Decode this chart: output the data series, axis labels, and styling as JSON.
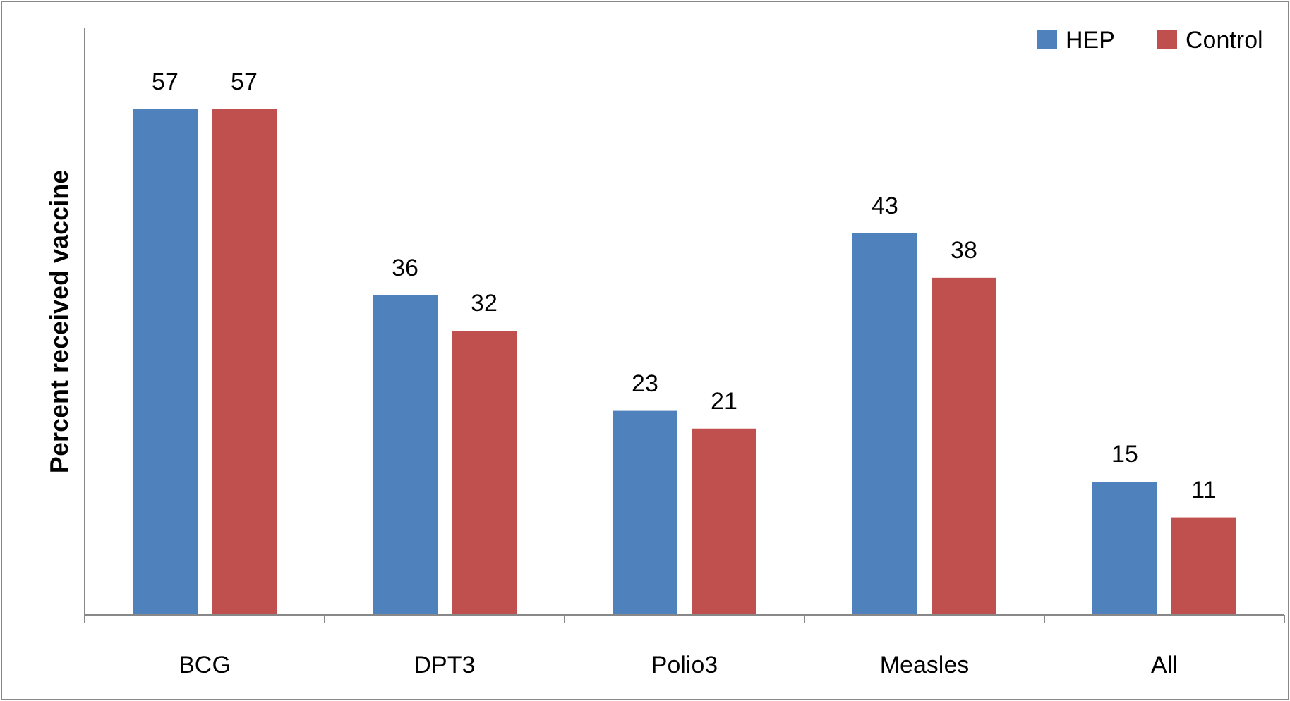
{
  "chart_data": {
    "type": "bar",
    "ylabel": "Percent received vaccine",
    "categories": [
      "BCG",
      "DPT3",
      "Polio3",
      "Measles",
      "All"
    ],
    "series": [
      {
        "name": "HEP",
        "color": "#4f81bd",
        "values": [
          57,
          36,
          23,
          43,
          15
        ]
      },
      {
        "name": "Control",
        "color": "#c0504d",
        "values": [
          57,
          32,
          21,
          38,
          11
        ]
      }
    ],
    "relative": false,
    "data_labels": true,
    "legend": "top right",
    "grid": false
  }
}
